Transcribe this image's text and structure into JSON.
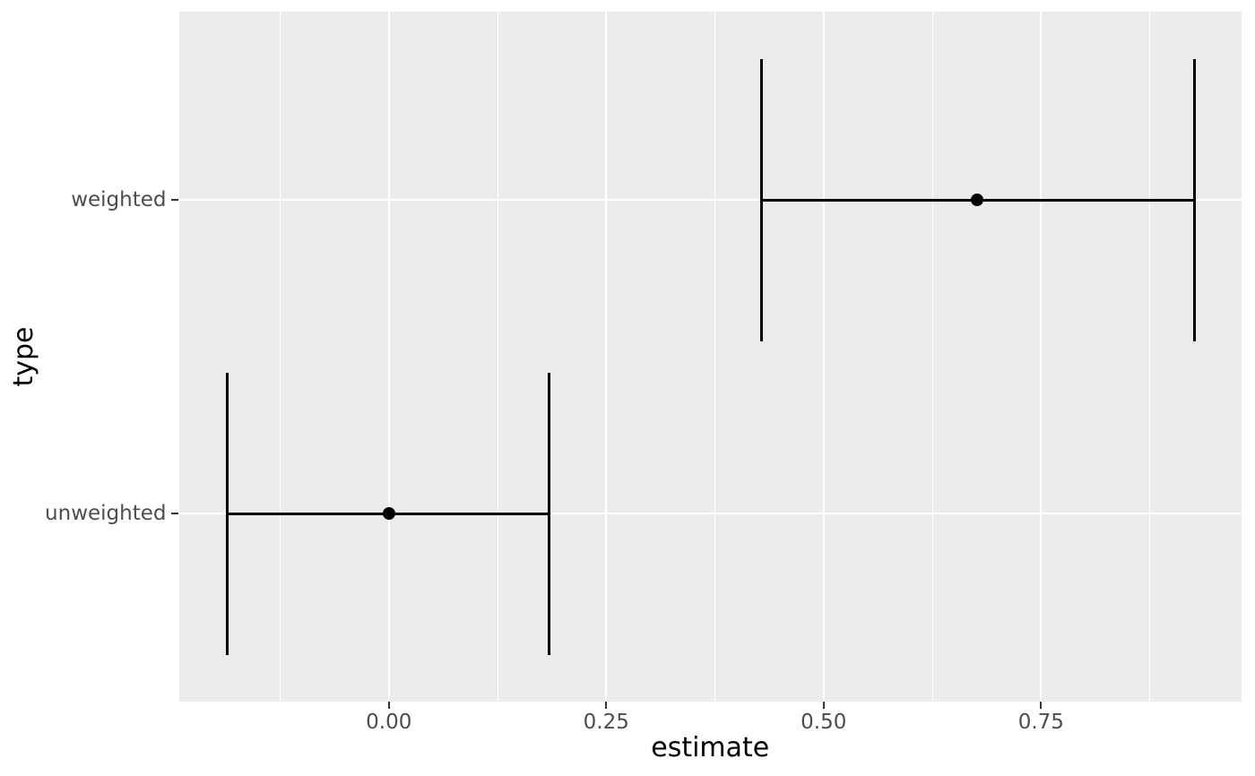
{
  "chart_data": {
    "type": "pointrange",
    "title": "",
    "xlabel": "estimate",
    "ylabel": "type",
    "categories": [
      "unweighted",
      "weighted"
    ],
    "rows": [
      {
        "type": "unweighted",
        "estimate": 0.0,
        "low": -0.186,
        "high": 0.184,
        "y_position": 1
      },
      {
        "type": "weighted",
        "estimate": 0.677,
        "low": 0.429,
        "high": 0.926,
        "y_position": 2
      }
    ],
    "x_ticks": [
      {
        "value": 0.0,
        "label": "0.00"
      },
      {
        "value": 0.25,
        "label": "0.25"
      },
      {
        "value": 0.5,
        "label": "0.50"
      },
      {
        "value": 0.75,
        "label": "0.75"
      }
    ],
    "x_minor_breaks": [
      -0.125,
      0.125,
      0.375,
      0.625,
      0.875
    ],
    "xlim": [
      -0.2415,
      0.9806
    ],
    "ylim": [
      0.4,
      2.6
    ],
    "errorbar_half_height": 0.45,
    "grid": true,
    "legend": "none",
    "colors": {
      "plot_background": "#FFFFFF",
      "panel_background": "#EBEBEB",
      "gridline": "#FFFFFF",
      "data": "#000000",
      "tick_mark": "#333333",
      "tick_label": "#4D4D4D",
      "axis_title": "#000000"
    }
  }
}
